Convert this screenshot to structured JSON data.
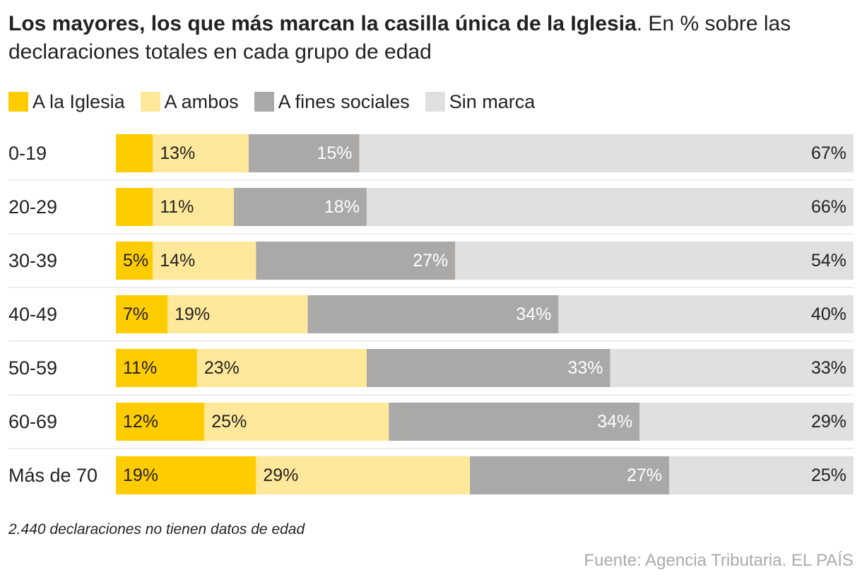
{
  "header": {
    "title_bold": "Los mayores, los que más marcan la casilla única de la Iglesia",
    "title_rest": ". En % sobre las declaraciones totales en cada grupo de edad"
  },
  "footer": {
    "note": "2.440 declaraciones no tienen datos de edad",
    "source": "Fuente: Agencia Tributaria. EL PAÍS"
  },
  "chart_data": {
    "type": "bar",
    "orientation": "horizontal",
    "stacked": true,
    "title": "Los mayores, los que más marcan la casilla única de la Iglesia. En % sobre las declaraciones totales en cada grupo de edad",
    "xlabel": "",
    "ylabel": "",
    "xlim": [
      0,
      100
    ],
    "grid": false,
    "legend_position": "top-left",
    "categories": [
      "0-19",
      "20-29",
      "30-39",
      "40-49",
      "50-59",
      "60-69",
      "Más de 70"
    ],
    "series": [
      {
        "name": "A la Iglesia",
        "color": "#FFCC00",
        "label_color": "#222222",
        "values": [
          5,
          5,
          5,
          7,
          11,
          12,
          19
        ],
        "labels": [
          "",
          "",
          "5%",
          "7%",
          "11%",
          "12%",
          "19%"
        ]
      },
      {
        "name": "A ambos",
        "color": "#FFE899",
        "label_color": "#222222",
        "values": [
          13,
          11,
          14,
          19,
          23,
          25,
          29
        ],
        "labels": [
          "13%",
          "11%",
          "14%",
          "19%",
          "23%",
          "25%",
          "29%"
        ]
      },
      {
        "name": "A fines sociales",
        "color": "#AAA9A7",
        "label_color": "#FFFFFF",
        "values": [
          15,
          18,
          27,
          34,
          33,
          34,
          27
        ],
        "labels": [
          "15%",
          "18%",
          "27%",
          "34%",
          "33%",
          "34%",
          "27%"
        ]
      },
      {
        "name": "Sin marca",
        "color": "#E0E0E0",
        "label_color": "#222222",
        "values": [
          67,
          66,
          54,
          40,
          33,
          29,
          25
        ],
        "labels": [
          "67%",
          "66%",
          "54%",
          "40%",
          "33%",
          "29%",
          "25%"
        ]
      }
    ]
  }
}
